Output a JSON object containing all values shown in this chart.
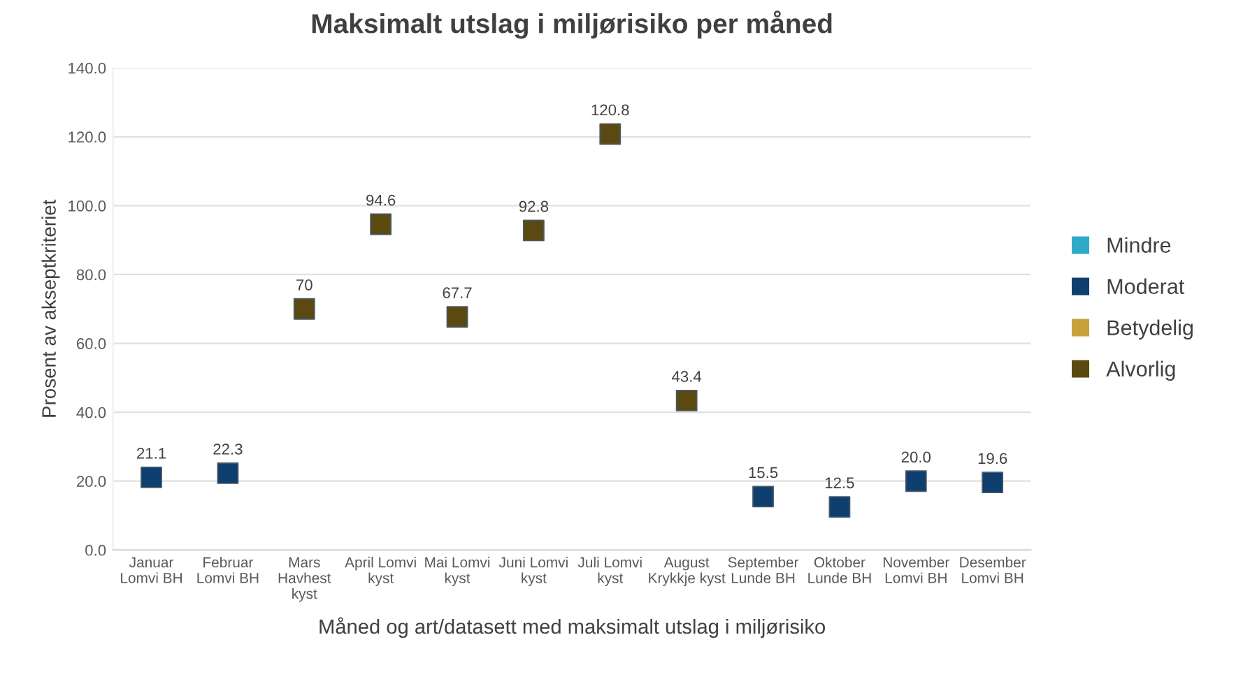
{
  "chart_data": {
    "type": "scatter",
    "title": "Maksimalt utslag i miljørisiko per måned",
    "xlabel": "Måned og art/datasett med maksimalt utslag i miljørisiko",
    "ylabel": "Prosent av akseptkriteriet",
    "categories": [
      "Januar\nLomvi BH",
      "Februar\nLomvi BH",
      "Mars\nHavhest\nkyst",
      "April Lomvi\nkyst",
      "Mai Lomvi\nkyst",
      "Juni Lomvi\nkyst",
      "Juli Lomvi\nkyst",
      "August\nKrykkje kyst",
      "September\nLunde BH",
      "Oktober\nLunde BH",
      "November\nLomvi BH",
      "Desember\nLomvi BH"
    ],
    "series": [
      {
        "name": "Mindre",
        "color": "#2eaac8",
        "values": [
          null,
          null,
          null,
          null,
          null,
          null,
          null,
          null,
          null,
          null,
          null,
          null
        ]
      },
      {
        "name": "Moderat",
        "color": "#0e3f6e",
        "values": [
          21.1,
          22.3,
          null,
          null,
          null,
          null,
          null,
          null,
          15.5,
          12.5,
          20.0,
          19.6
        ],
        "value_labels": [
          "21.1",
          "22.3",
          null,
          null,
          null,
          null,
          null,
          null,
          "15.5",
          "12.5",
          "20.0",
          "19.6"
        ]
      },
      {
        "name": "Betydelig",
        "color": "#c9a13a",
        "values": [
          null,
          null,
          null,
          null,
          null,
          null,
          null,
          null,
          null,
          null,
          null,
          null
        ]
      },
      {
        "name": "Alvorlig",
        "color": "#5a4a12",
        "values": [
          null,
          null,
          70,
          94.6,
          67.7,
          92.8,
          120.8,
          43.4,
          null,
          null,
          null,
          null
        ],
        "value_labels": [
          null,
          null,
          "70",
          "94.6",
          "67.7",
          "92.8",
          "120.8",
          "43.4",
          null,
          null,
          null,
          null
        ]
      }
    ],
    "ylim": [
      0,
      140
    ],
    "yticks": [
      {
        "value": 0,
        "label": "0.0"
      },
      {
        "value": 20,
        "label": "20.0"
      },
      {
        "value": 40,
        "label": "40.0"
      },
      {
        "value": 60,
        "label": "60.0"
      },
      {
        "value": 80,
        "label": "80.0"
      },
      {
        "value": 100,
        "label": "100.0"
      },
      {
        "value": 120,
        "label": "120.0"
      },
      {
        "value": 140,
        "label": "140.0"
      }
    ],
    "grid": "y",
    "legend": "right",
    "marker": "square"
  }
}
